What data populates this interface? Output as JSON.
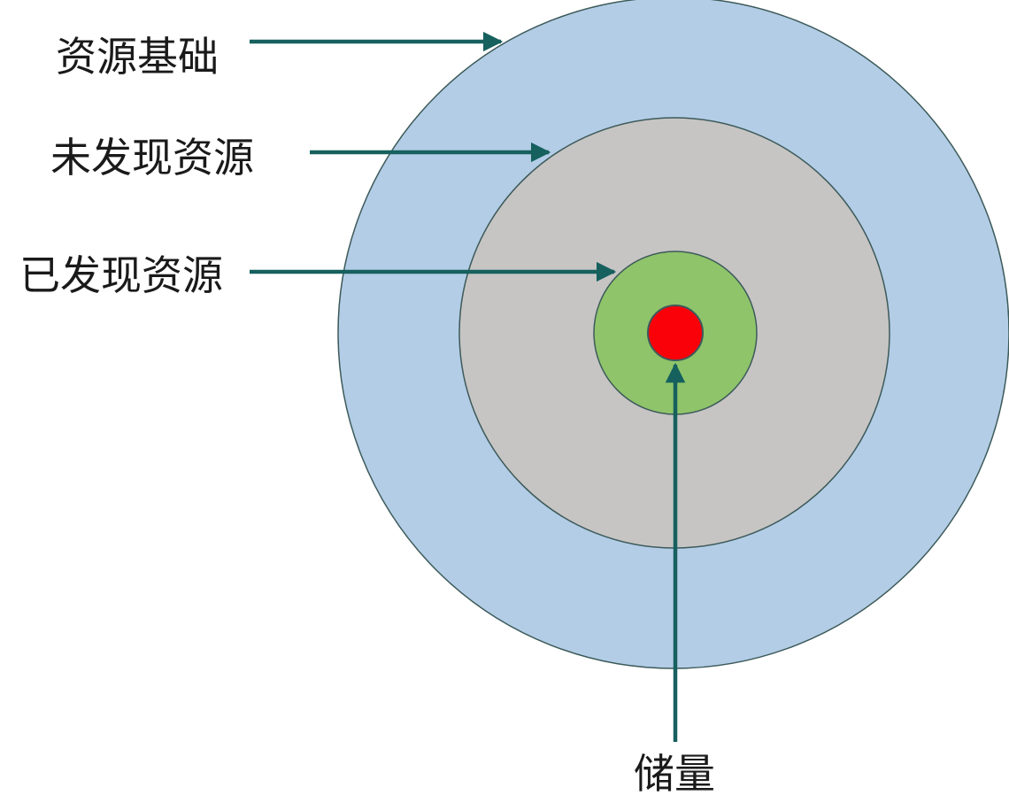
{
  "rings": [
    {
      "id": "resource-base",
      "label": "资源基础",
      "fill": "#b3cde6"
    },
    {
      "id": "undiscovered-resources",
      "label": "未发现资源",
      "fill": "#c6c5c4"
    },
    {
      "id": "discovered-resources",
      "label": "已发现资源",
      "fill": "#8fc46a"
    },
    {
      "id": "reserves",
      "label": "储量",
      "fill": "#fa0008"
    }
  ],
  "colors": {
    "arrow": "#16605e",
    "outline": "#3d5a5a"
  }
}
